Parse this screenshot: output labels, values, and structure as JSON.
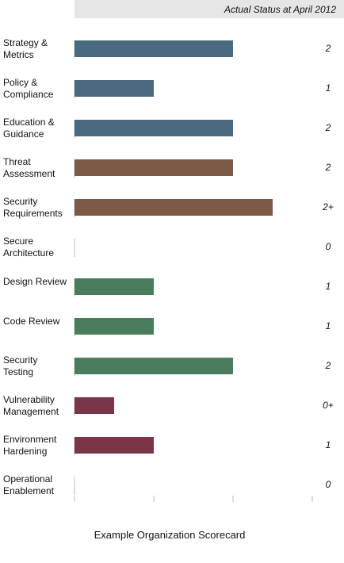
{
  "chart_data": {
    "type": "hbar",
    "header": "Actual Status at April 2012",
    "title": "Example Organization Scorecard",
    "categories": [
      "Strategy &\nMetrics",
      "Policy &\nCompliance",
      "Education &\nGuidance",
      "Threat\nAssessment",
      "Security\nRequirements",
      "Secure\nArchitecture",
      "Design Review",
      "Code Review",
      "Security\nTesting",
      "Vulnerability\nManagement",
      "Environment\nHardening",
      "Operational\nEnablement"
    ],
    "values": [
      2,
      1,
      2,
      2,
      2.5,
      0,
      1,
      1,
      2,
      0.5,
      1,
      0
    ],
    "value_labels": [
      "2",
      "1",
      "2",
      "2",
      "2+",
      "0",
      "1",
      "1",
      "2",
      "0+",
      "1",
      "0"
    ],
    "colors": [
      "#4a6a80",
      "#4a6a80",
      "#4a6a80",
      "#7d5a48",
      "#7d5a48",
      "#888888",
      "#4a7d5c",
      "#4a7d5c",
      "#4a7d5c",
      "#7a3646",
      "#7a3646",
      "#888888"
    ],
    "xlim": [
      0,
      3
    ],
    "xticks": [
      0,
      1,
      2,
      3
    ]
  }
}
